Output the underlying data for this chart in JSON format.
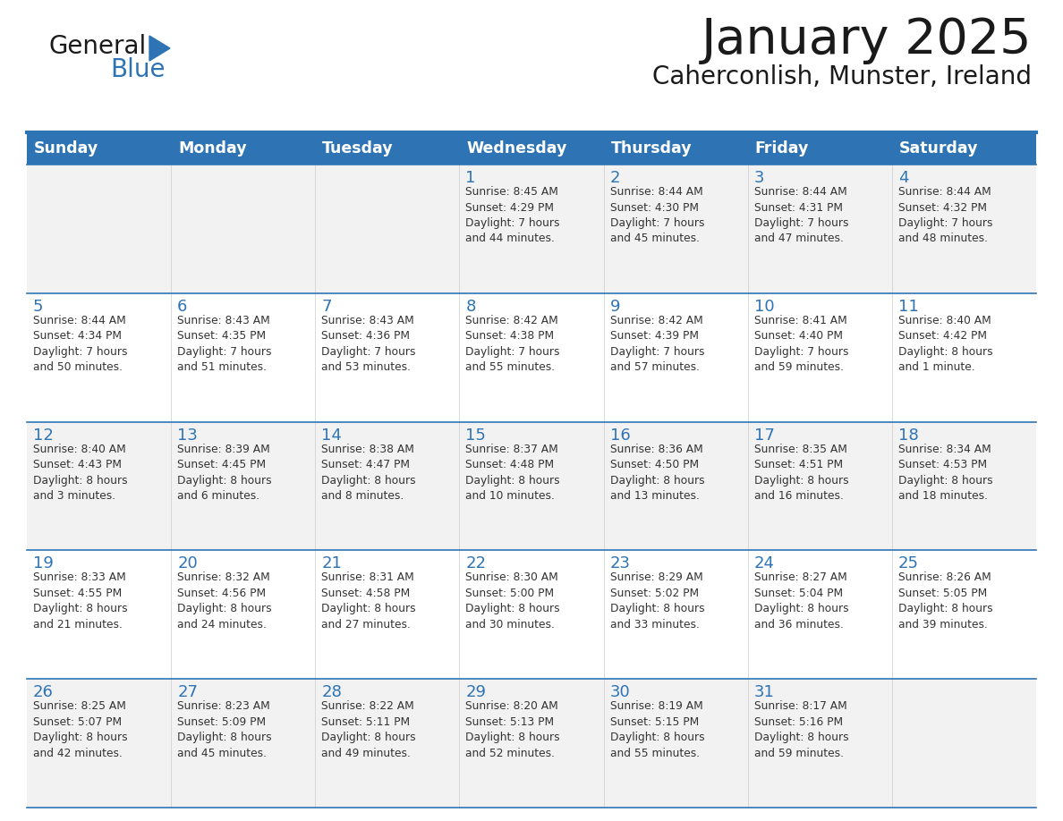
{
  "title": "January 2025",
  "subtitle": "Caherconlish, Munster, Ireland",
  "days_of_week": [
    "Sunday",
    "Monday",
    "Tuesday",
    "Wednesday",
    "Thursday",
    "Friday",
    "Saturday"
  ],
  "header_bg": "#2E74B5",
  "header_text_color": "#FFFFFF",
  "cell_bg_odd": "#F2F2F2",
  "cell_bg_even": "#FFFFFF",
  "line_color": "#2E74B5",
  "title_color": "#1A1A1A",
  "text_color": "#333333",
  "day_num_color": "#2E74B5",
  "logo_general_color": "#1A1A1A",
  "logo_blue_color": "#2E74B5",
  "calendar_data": [
    [
      {
        "day": "",
        "info": ""
      },
      {
        "day": "",
        "info": ""
      },
      {
        "day": "",
        "info": ""
      },
      {
        "day": "1",
        "info": "Sunrise: 8:45 AM\nSunset: 4:29 PM\nDaylight: 7 hours\nand 44 minutes."
      },
      {
        "day": "2",
        "info": "Sunrise: 8:44 AM\nSunset: 4:30 PM\nDaylight: 7 hours\nand 45 minutes."
      },
      {
        "day": "3",
        "info": "Sunrise: 8:44 AM\nSunset: 4:31 PM\nDaylight: 7 hours\nand 47 minutes."
      },
      {
        "day": "4",
        "info": "Sunrise: 8:44 AM\nSunset: 4:32 PM\nDaylight: 7 hours\nand 48 minutes."
      }
    ],
    [
      {
        "day": "5",
        "info": "Sunrise: 8:44 AM\nSunset: 4:34 PM\nDaylight: 7 hours\nand 50 minutes."
      },
      {
        "day": "6",
        "info": "Sunrise: 8:43 AM\nSunset: 4:35 PM\nDaylight: 7 hours\nand 51 minutes."
      },
      {
        "day": "7",
        "info": "Sunrise: 8:43 AM\nSunset: 4:36 PM\nDaylight: 7 hours\nand 53 minutes."
      },
      {
        "day": "8",
        "info": "Sunrise: 8:42 AM\nSunset: 4:38 PM\nDaylight: 7 hours\nand 55 minutes."
      },
      {
        "day": "9",
        "info": "Sunrise: 8:42 AM\nSunset: 4:39 PM\nDaylight: 7 hours\nand 57 minutes."
      },
      {
        "day": "10",
        "info": "Sunrise: 8:41 AM\nSunset: 4:40 PM\nDaylight: 7 hours\nand 59 minutes."
      },
      {
        "day": "11",
        "info": "Sunrise: 8:40 AM\nSunset: 4:42 PM\nDaylight: 8 hours\nand 1 minute."
      }
    ],
    [
      {
        "day": "12",
        "info": "Sunrise: 8:40 AM\nSunset: 4:43 PM\nDaylight: 8 hours\nand 3 minutes."
      },
      {
        "day": "13",
        "info": "Sunrise: 8:39 AM\nSunset: 4:45 PM\nDaylight: 8 hours\nand 6 minutes."
      },
      {
        "day": "14",
        "info": "Sunrise: 8:38 AM\nSunset: 4:47 PM\nDaylight: 8 hours\nand 8 minutes."
      },
      {
        "day": "15",
        "info": "Sunrise: 8:37 AM\nSunset: 4:48 PM\nDaylight: 8 hours\nand 10 minutes."
      },
      {
        "day": "16",
        "info": "Sunrise: 8:36 AM\nSunset: 4:50 PM\nDaylight: 8 hours\nand 13 minutes."
      },
      {
        "day": "17",
        "info": "Sunrise: 8:35 AM\nSunset: 4:51 PM\nDaylight: 8 hours\nand 16 minutes."
      },
      {
        "day": "18",
        "info": "Sunrise: 8:34 AM\nSunset: 4:53 PM\nDaylight: 8 hours\nand 18 minutes."
      }
    ],
    [
      {
        "day": "19",
        "info": "Sunrise: 8:33 AM\nSunset: 4:55 PM\nDaylight: 8 hours\nand 21 minutes."
      },
      {
        "day": "20",
        "info": "Sunrise: 8:32 AM\nSunset: 4:56 PM\nDaylight: 8 hours\nand 24 minutes."
      },
      {
        "day": "21",
        "info": "Sunrise: 8:31 AM\nSunset: 4:58 PM\nDaylight: 8 hours\nand 27 minutes."
      },
      {
        "day": "22",
        "info": "Sunrise: 8:30 AM\nSunset: 5:00 PM\nDaylight: 8 hours\nand 30 minutes."
      },
      {
        "day": "23",
        "info": "Sunrise: 8:29 AM\nSunset: 5:02 PM\nDaylight: 8 hours\nand 33 minutes."
      },
      {
        "day": "24",
        "info": "Sunrise: 8:27 AM\nSunset: 5:04 PM\nDaylight: 8 hours\nand 36 minutes."
      },
      {
        "day": "25",
        "info": "Sunrise: 8:26 AM\nSunset: 5:05 PM\nDaylight: 8 hours\nand 39 minutes."
      }
    ],
    [
      {
        "day": "26",
        "info": "Sunrise: 8:25 AM\nSunset: 5:07 PM\nDaylight: 8 hours\nand 42 minutes."
      },
      {
        "day": "27",
        "info": "Sunrise: 8:23 AM\nSunset: 5:09 PM\nDaylight: 8 hours\nand 45 minutes."
      },
      {
        "day": "28",
        "info": "Sunrise: 8:22 AM\nSunset: 5:11 PM\nDaylight: 8 hours\nand 49 minutes."
      },
      {
        "day": "29",
        "info": "Sunrise: 8:20 AM\nSunset: 5:13 PM\nDaylight: 8 hours\nand 52 minutes."
      },
      {
        "day": "30",
        "info": "Sunrise: 8:19 AM\nSunset: 5:15 PM\nDaylight: 8 hours\nand 55 minutes."
      },
      {
        "day": "31",
        "info": "Sunrise: 8:17 AM\nSunset: 5:16 PM\nDaylight: 8 hours\nand 59 minutes."
      },
      {
        "day": "",
        "info": ""
      }
    ]
  ]
}
